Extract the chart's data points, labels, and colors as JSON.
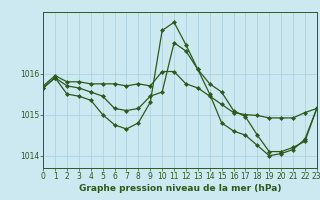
{
  "title": "Graphe pression niveau de la mer (hPa)",
  "background_color": "#cce8f0",
  "grid_color": "#aacfdc",
  "line_color": "#2d5a1b",
  "xlim": [
    0,
    23
  ],
  "ylim": [
    1013.7,
    1017.5
  ],
  "yticks": [
    1014,
    1015,
    1016
  ],
  "xticks": [
    0,
    1,
    2,
    3,
    4,
    5,
    6,
    7,
    8,
    9,
    10,
    11,
    12,
    13,
    14,
    15,
    16,
    17,
    18,
    19,
    20,
    21,
    22,
    23
  ],
  "series1": [
    1015.7,
    1015.95,
    1015.8,
    1015.8,
    1015.75,
    1015.75,
    1015.75,
    1015.7,
    1015.75,
    1015.7,
    1016.05,
    1016.05,
    1015.75,
    1015.65,
    1015.45,
    1015.25,
    1015.05,
    1015.0,
    1014.98,
    1014.92,
    1014.92,
    1014.92,
    1015.05,
    1015.15
  ],
  "series2": [
    1015.65,
    1015.9,
    1015.7,
    1015.65,
    1015.55,
    1015.45,
    1015.15,
    1015.1,
    1015.15,
    1015.45,
    1015.55,
    1016.75,
    1016.55,
    1016.1,
    1015.75,
    1015.55,
    1015.1,
    1014.95,
    1014.5,
    1014.1,
    1014.1,
    1014.2,
    1014.35,
    1015.15
  ],
  "series3": [
    1015.65,
    1015.9,
    1015.5,
    1015.45,
    1015.35,
    1015.0,
    1014.75,
    1014.65,
    1014.8,
    1015.3,
    1017.05,
    1017.25,
    1016.7,
    1016.1,
    1015.5,
    1014.8,
    1014.6,
    1014.5,
    1014.25,
    1014.0,
    1014.05,
    1014.15,
    1014.4,
    1015.15
  ],
  "marker": "D",
  "markersize": 2.0,
  "linewidth": 0.9,
  "title_fontsize": 6.5,
  "tick_fontsize": 5.5
}
